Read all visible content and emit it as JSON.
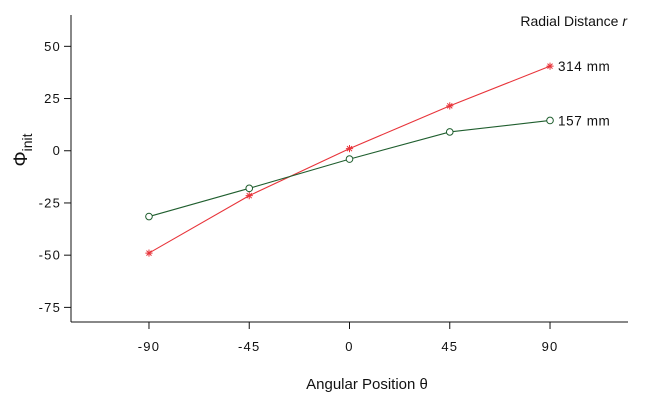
{
  "chart_data": {
    "type": "line",
    "title": "",
    "legend_title": "Radial Distance",
    "legend_title_var": "r",
    "legend_placement": "top-right",
    "xlabel": "Angular Position θ",
    "ylabel_symbol": "Φ",
    "ylabel_subscript": "init",
    "x": [
      -90,
      -45,
      0,
      45,
      90
    ],
    "x_tick_labels": [
      "-90",
      "-45",
      "0",
      "45",
      "90"
    ],
    "y_ticks": [
      50,
      25,
      0,
      -25,
      -50,
      -75
    ],
    "y_tick_labels": [
      "50",
      "25",
      "0",
      "-25",
      "-50",
      "-75"
    ],
    "xlim": [
      -125,
      125
    ],
    "ylim": [
      -82,
      65
    ],
    "grid": false,
    "series": [
      {
        "name": "314 mm",
        "marker": "asterisk",
        "color": "#e8343a",
        "values": [
          -49,
          -21.5,
          1,
          21.5,
          40.5
        ]
      },
      {
        "name": "157 mm",
        "marker": "circle",
        "color": "#1f5e2e",
        "values": [
          -31.5,
          -18,
          -4,
          9,
          14.5
        ]
      }
    ]
  }
}
